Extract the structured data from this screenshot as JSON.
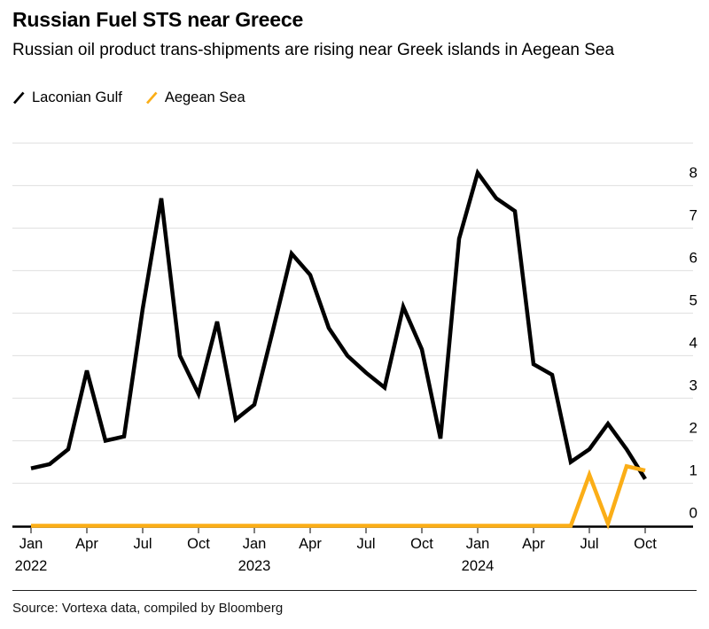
{
  "header": {
    "title": "Russian Fuel STS near Greece",
    "subtitle": "Russian oil product trans-shipments are rising near Greek islands in Aegean Sea"
  },
  "legend": {
    "items": [
      {
        "label": "Laconian Gulf",
        "color": "#000000"
      },
      {
        "label": "Aegean Sea",
        "color": "#FBAE17"
      }
    ]
  },
  "chart_data": {
    "type": "line",
    "title": "Russian Fuel STS near Greece",
    "x": [
      "Jan 2022",
      "Feb 2022",
      "Mar 2022",
      "Apr 2022",
      "May 2022",
      "Jun 2022",
      "Jul 2022",
      "Aug 2022",
      "Sep 2022",
      "Oct 2022",
      "Nov 2022",
      "Dec 2022",
      "Jan 2023",
      "Feb 2023",
      "Mar 2023",
      "Apr 2023",
      "May 2023",
      "Jun 2023",
      "Jul 2023",
      "Aug 2023",
      "Sep 2023",
      "Oct 2023",
      "Nov 2023",
      "Dec 2023",
      "Jan 2024",
      "Feb 2024",
      "Mar 2024",
      "Apr 2024",
      "May 2024",
      "Jun 2024",
      "Jul 2024",
      "Aug 2024",
      "Sep 2024",
      "Oct 2024"
    ],
    "series": [
      {
        "name": "Laconian Gulf",
        "color": "#000000",
        "values": [
          1.35,
          1.45,
          1.8,
          3.65,
          2.0,
          2.1,
          5.1,
          7.7,
          4.0,
          3.1,
          4.8,
          2.5,
          2.85,
          4.6,
          6.4,
          5.9,
          4.65,
          4.0,
          3.6,
          3.25,
          5.15,
          4.15,
          2.05,
          6.75,
          8.3,
          7.7,
          7.4,
          3.8,
          3.55,
          1.5,
          1.8,
          2.4,
          1.8,
          1.1
        ]
      },
      {
        "name": "Aegean Sea",
        "color": "#FBAE17",
        "values": [
          0,
          0,
          0,
          0,
          0,
          0,
          0,
          0,
          0,
          0,
          0,
          0,
          0,
          0,
          0,
          0,
          0,
          0,
          0,
          0,
          0,
          0,
          0,
          0,
          0,
          0,
          0,
          0,
          0,
          0,
          1.2,
          0.05,
          1.4,
          1.3
        ]
      }
    ],
    "x_ticks": [
      {
        "index": 0,
        "label": "Jan",
        "year": "2022"
      },
      {
        "index": 3,
        "label": "Apr"
      },
      {
        "index": 6,
        "label": "Jul"
      },
      {
        "index": 9,
        "label": "Oct"
      },
      {
        "index": 12,
        "label": "Jan",
        "year": "2023"
      },
      {
        "index": 15,
        "label": "Apr"
      },
      {
        "index": 18,
        "label": "Jul"
      },
      {
        "index": 21,
        "label": "Oct"
      },
      {
        "index": 24,
        "label": "Jan",
        "year": "2024"
      },
      {
        "index": 27,
        "label": "Apr"
      },
      {
        "index": 30,
        "label": "Jul"
      },
      {
        "index": 33,
        "label": "Oct"
      }
    ],
    "y_ticks": [
      0,
      1,
      2,
      3,
      4,
      5,
      6,
      7,
      8
    ],
    "ylim": [
      0,
      9
    ],
    "grid": true,
    "y_axis_side": "right",
    "legend_position": "top-left"
  },
  "source": {
    "text": "Source: Vortexa data, compiled by Bloomberg"
  },
  "colors": {
    "line_black": "#000000",
    "accent_yellow": "#FBAE17",
    "gridline": "#E4E4E4",
    "axis_line": "#000000",
    "tick_mark": "#555555"
  }
}
